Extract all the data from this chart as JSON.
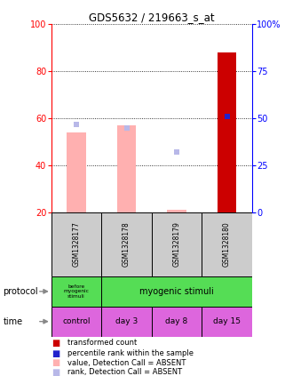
{
  "title": "GDS5632 / 219663_s_at",
  "samples": [
    "GSM1328177",
    "GSM1328178",
    "GSM1328179",
    "GSM1328180"
  ],
  "bar_values": [
    54,
    57,
    21,
    88
  ],
  "bar_colors": [
    "#ffb0b0",
    "#ffb0b0",
    "#ffb0b0",
    "#cc0000"
  ],
  "rank_values": [
    47,
    45,
    32,
    51
  ],
  "rank_colors": [
    "#b8b8e8",
    "#b8b8e8",
    "#b8b8e8",
    "#2222cc"
  ],
  "bar_absent": [
    true,
    true,
    true,
    false
  ],
  "rank_absent": [
    true,
    true,
    true,
    false
  ],
  "ylim_left": [
    20,
    100
  ],
  "ylim_right": [
    0,
    100
  ],
  "yticks_left": [
    20,
    40,
    60,
    80,
    100
  ],
  "yticks_right": [
    0,
    25,
    50,
    75,
    100
  ],
  "ytick_labels_right": [
    "0",
    "25",
    "50",
    "75",
    "100%"
  ],
  "time_labels": [
    "control",
    "day 3",
    "day 8",
    "day 15"
  ],
  "time_color": "#dd66dd",
  "sample_bg": "#cccccc",
  "green_color": "#55dd55",
  "legend_items": [
    {
      "color": "#cc0000",
      "label": "transformed count"
    },
    {
      "color": "#2222cc",
      "label": "percentile rank within the sample"
    },
    {
      "color": "#ffb0b0",
      "label": "value, Detection Call = ABSENT"
    },
    {
      "color": "#b8b8e8",
      "label": "rank, Detection Call = ABSENT"
    }
  ],
  "bar_width": 0.38
}
